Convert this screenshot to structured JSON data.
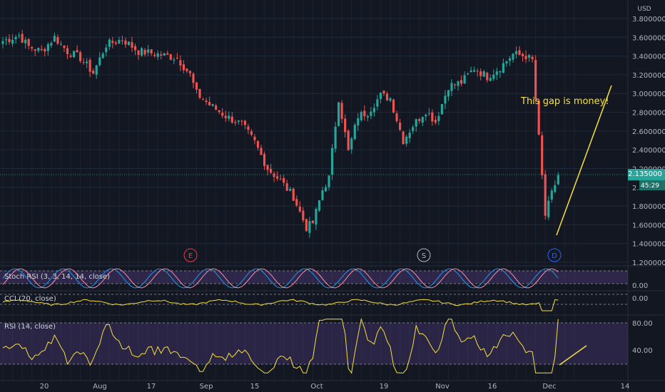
{
  "currency": "USD",
  "price_badge": {
    "price": "2.135000",
    "countdown": "45:29"
  },
  "annotation": "This gap is money!",
  "events": [
    {
      "label": "E",
      "color": "#f23645"
    },
    {
      "label": "S",
      "color": "#b2b5be"
    },
    {
      "label": "D",
      "color": "#2962ff"
    }
  ],
  "colors": {
    "up": "#26a69a",
    "down": "#ef5350",
    "osc": "#f7e03c",
    "stoch_k": "#2196f3",
    "stoch_d": "#f48fb1",
    "band": "#7e57c2",
    "trend": "#f7e03c"
  },
  "chart_data": [
    {
      "type": "candlestick",
      "y_axis_ticks": [
        "3.800000",
        "3.600000",
        "3.400000",
        "3.200000",
        "3.000000",
        "2.800000",
        "2.600000",
        "2.400000",
        "2.200000",
        "2.000000",
        "1.800000",
        "1.600000",
        "1.400000",
        "1.200000"
      ],
      "ylim": [
        1.2,
        3.8
      ],
      "x_axis_ticks": [
        "20",
        "Aug",
        "17",
        "Sep",
        "15",
        "Oct",
        "19",
        "Nov",
        "16",
        "Dec",
        "14"
      ],
      "last_price": 2.135,
      "anchors": [
        {
          "i": 0,
          "v": 3.56
        },
        {
          "i": 5,
          "v": 3.62
        },
        {
          "i": 8,
          "v": 3.5
        },
        {
          "i": 12,
          "v": 3.45
        },
        {
          "i": 16,
          "v": 3.6
        },
        {
          "i": 20,
          "v": 3.45
        },
        {
          "i": 24,
          "v": 3.38
        },
        {
          "i": 28,
          "v": 3.22
        },
        {
          "i": 32,
          "v": 3.52
        },
        {
          "i": 37,
          "v": 3.58
        },
        {
          "i": 42,
          "v": 3.45
        },
        {
          "i": 48,
          "v": 3.42
        },
        {
          "i": 54,
          "v": 3.38
        },
        {
          "i": 58,
          "v": 3.2
        },
        {
          "i": 60,
          "v": 3.0
        },
        {
          "i": 64,
          "v": 2.88
        },
        {
          "i": 69,
          "v": 2.76
        },
        {
          "i": 74,
          "v": 2.67
        },
        {
          "i": 78,
          "v": 2.48
        },
        {
          "i": 82,
          "v": 2.2
        },
        {
          "i": 86,
          "v": 2.07
        },
        {
          "i": 90,
          "v": 1.9
        },
        {
          "i": 94,
          "v": 1.57
        },
        {
          "i": 96,
          "v": 1.62
        },
        {
          "i": 99,
          "v": 1.97
        },
        {
          "i": 101,
          "v": 2.1
        },
        {
          "i": 104,
          "v": 2.95
        },
        {
          "i": 107,
          "v": 2.38
        },
        {
          "i": 110,
          "v": 2.76
        },
        {
          "i": 113,
          "v": 2.8
        },
        {
          "i": 117,
          "v": 2.98
        },
        {
          "i": 120,
          "v": 2.95
        },
        {
          "i": 124,
          "v": 2.5
        },
        {
          "i": 127,
          "v": 2.66
        },
        {
          "i": 131,
          "v": 2.82
        },
        {
          "i": 134,
          "v": 2.7
        },
        {
          "i": 138,
          "v": 3.08
        },
        {
          "i": 142,
          "v": 3.12
        },
        {
          "i": 146,
          "v": 3.27
        },
        {
          "i": 150,
          "v": 3.18
        },
        {
          "i": 154,
          "v": 3.28
        },
        {
          "i": 158,
          "v": 3.42
        },
        {
          "i": 162,
          "v": 3.4
        },
        {
          "i": 164,
          "v": 3.35
        },
        {
          "i": 168,
          "v": 1.7
        },
        {
          "i": 170,
          "v": 1.93
        },
        {
          "i": 172,
          "v": 2.13
        }
      ]
    },
    {
      "type": "line",
      "name": "Stoch RSI (3, 3, 14, 14, close)",
      "y_axis_ticks": [
        "0.00"
      ]
    },
    {
      "type": "line",
      "name": "CCI (20, close)",
      "y_axis_ticks": [
        "0.00"
      ]
    },
    {
      "type": "line",
      "name": "RSI (14, close)",
      "y_axis_ticks": [
        "80.00",
        "40.00"
      ]
    }
  ]
}
